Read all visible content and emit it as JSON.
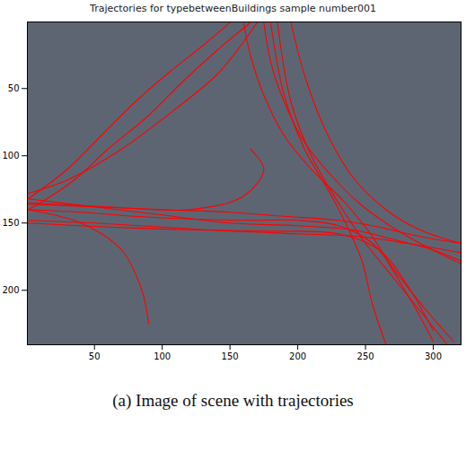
{
  "chart_data": {
    "type": "line",
    "title": "Trajectories for typebetweenBuildings sample number001",
    "caption": "(a) Image of scene with trajectories",
    "color": "#ff0000",
    "xlim": [
      0.5,
      320.5
    ],
    "ylim": [
      240.5,
      0.5
    ],
    "xticks": [
      50,
      100,
      150,
      200,
      250,
      300
    ],
    "yticks": [
      50,
      100,
      150,
      200
    ],
    "series": [
      {
        "x": [
          1,
          40,
          80,
          120,
          160,
          200,
          230,
          255,
          275,
          295,
          315
        ],
        "values": [
          140,
          142,
          145,
          147,
          148,
          148,
          152,
          165,
          190,
          215,
          238
        ]
      },
      {
        "x": [
          1,
          50,
          100,
          150,
          200,
          240,
          270,
          300,
          320
        ],
        "values": [
          132,
          138,
          144,
          150,
          152,
          155,
          162,
          170,
          178
        ]
      },
      {
        "x": [
          2,
          50,
          100,
          150,
          200,
          245,
          280,
          320
        ],
        "values": [
          148,
          150,
          153,
          156,
          158,
          160,
          165,
          172
        ]
      },
      {
        "x": [
          160,
          165,
          175,
          190,
          210,
          235,
          255,
          270,
          285,
          300
        ],
        "values": [
          1,
          25,
          55,
          85,
          110,
          135,
          160,
          185,
          210,
          238
        ]
      },
      {
        "x": [
          175,
          180,
          190,
          205,
          225,
          245,
          265,
          290,
          320
        ],
        "values": [
          1,
          30,
          60,
          90,
          115,
          135,
          150,
          165,
          180
        ]
      },
      {
        "x": [
          150,
          130,
          105,
          80,
          55,
          30,
          1
        ],
        "values": [
          1,
          18,
          38,
          60,
          85,
          110,
          132
        ]
      },
      {
        "x": [
          165,
          140,
          115,
          90,
          60,
          35,
          10,
          1
        ],
        "values": [
          1,
          22,
          45,
          70,
          95,
          118,
          135,
          140
        ]
      },
      {
        "x": [
          1,
          30,
          70,
          110,
          140,
          158,
          170
        ],
        "values": [
          128,
          118,
          95,
          65,
          40,
          18,
          1
        ]
      },
      {
        "x": [
          320,
          290,
          260,
          230,
          190,
          150,
          100,
          50,
          1
        ],
        "values": [
          165,
          160,
          153,
          148,
          145,
          142,
          140,
          138,
          136
        ]
      },
      {
        "x": [
          310,
          290,
          270,
          250,
          230,
          210,
          195,
          185
        ],
        "values": [
          240,
          215,
          190,
          165,
          135,
          100,
          60,
          1
        ]
      },
      {
        "x": [
          265,
          255,
          248,
          240,
          225,
          205,
          190,
          180
        ],
        "values": [
          240,
          210,
          180,
          160,
          130,
          95,
          55,
          1
        ]
      },
      {
        "x": [
          1,
          40,
          70,
          85,
          90
        ],
        "values": [
          140,
          150,
          170,
          200,
          225
        ]
      },
      {
        "x": [
          1,
          60,
          120,
          160,
          175,
          165
        ],
        "values": [
          135,
          138,
          140,
          130,
          110,
          95
        ]
      },
      {
        "x": [
          195,
          205,
          220,
          240,
          265,
          290,
          320
        ],
        "values": [
          1,
          40,
          80,
          115,
          140,
          155,
          165
        ]
      },
      {
        "x": [
          1,
          60,
          120,
          180,
          230,
          260,
          280,
          300
        ],
        "values": [
          150,
          153,
          155,
          156,
          158,
          170,
          195,
          230
        ]
      }
    ]
  }
}
